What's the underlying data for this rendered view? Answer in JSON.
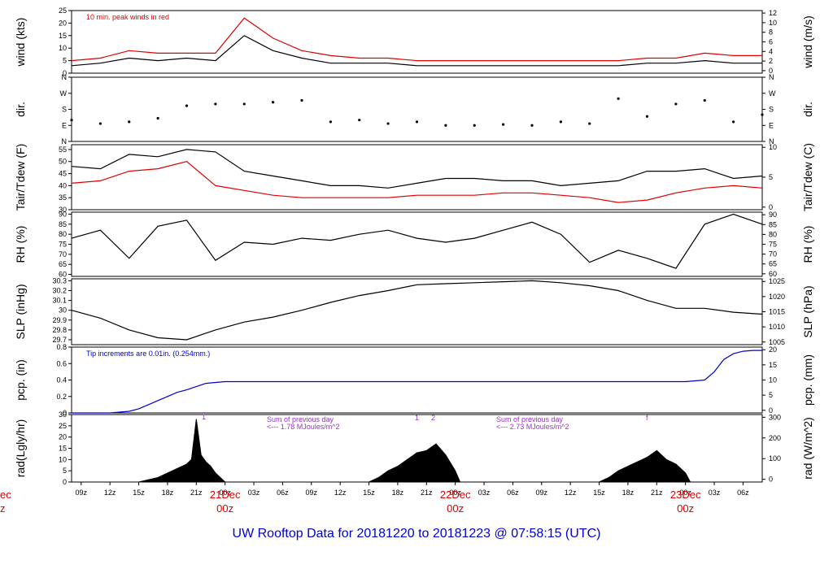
{
  "footer_title": "UW Rooftop Data for 20181220  to  20181223 @ 07:58:15  (UTC)",
  "x_axis": {
    "hours_ticks": [
      "09z",
      "12z",
      "15z",
      "18z",
      "21z",
      "00z",
      "03z",
      "06z",
      "09z",
      "12z",
      "15z",
      "18z",
      "21z",
      "00z",
      "03z",
      "06z",
      "09z",
      "12z",
      "15z",
      "18z",
      "21z",
      "00z",
      "03z",
      "06z"
    ],
    "day_labels": [
      {
        "date": "21Dec",
        "time": "00z"
      },
      {
        "date": "22Dec",
        "time": "00z"
      },
      {
        "date": "23Dec",
        "time": "00z"
      }
    ],
    "left_cut_day": {
      "date": "ec",
      "time": "z"
    }
  },
  "chart_data": [
    {
      "type": "line",
      "id": "wind",
      "ylabel": "wind (kts)",
      "ylabel_right": "wind (m/s)",
      "ylim": [
        0,
        25
      ],
      "yticks": [
        0,
        5,
        10,
        15,
        20,
        25
      ],
      "yticks_right": [
        0,
        2,
        4,
        6,
        8,
        10,
        12
      ],
      "annotation": "10 min. peak winds in red",
      "series": [
        {
          "name": "wind",
          "color": "#000000",
          "x": [
            0,
            3,
            6,
            9,
            12,
            15,
            18,
            21,
            24,
            27,
            30,
            33,
            36,
            39,
            42,
            45,
            48,
            51,
            54,
            57,
            60,
            63,
            66,
            69,
            72
          ],
          "values": [
            3,
            4,
            6,
            5,
            6,
            5,
            15,
            9,
            6,
            4,
            4,
            4,
            3,
            3,
            3,
            3,
            3,
            3,
            3,
            3,
            4,
            4,
            5,
            4,
            4
          ]
        },
        {
          "name": "10 min. peak winds",
          "color": "#dd0000",
          "x": [
            0,
            3,
            6,
            9,
            12,
            15,
            18,
            21,
            24,
            27,
            30,
            33,
            36,
            39,
            42,
            45,
            48,
            51,
            54,
            57,
            60,
            63,
            66,
            69,
            72
          ],
          "values": [
            5,
            6,
            9,
            8,
            8,
            8,
            22,
            14,
            9,
            7,
            6,
            6,
            5,
            5,
            5,
            5,
            5,
            5,
            5,
            5,
            6,
            6,
            8,
            7,
            7
          ]
        }
      ]
    },
    {
      "type": "scatter",
      "id": "dir",
      "ylabel": "dir.",
      "ylabel_right": "dir.",
      "yticks": [
        "N",
        "E",
        "S",
        "W",
        "N"
      ],
      "yticks_right": [
        "N",
        "E",
        "S",
        "W",
        "N"
      ],
      "ylim": [
        0,
        360
      ],
      "series": [
        {
          "name": "dir",
          "color": "#000000",
          "x": [
            0,
            3,
            6,
            9,
            12,
            15,
            18,
            21,
            24,
            27,
            30,
            33,
            36,
            39,
            42,
            45,
            48,
            51,
            54,
            57,
            60,
            63,
            66,
            69,
            72
          ],
          "values": [
            120,
            100,
            110,
            130,
            200,
            210,
            210,
            220,
            230,
            110,
            120,
            100,
            110,
            90,
            90,
            95,
            90,
            110,
            100,
            240,
            140,
            210,
            230,
            110,
            150
          ]
        }
      ]
    },
    {
      "type": "line",
      "id": "temp",
      "ylabel": "Tair/Tdew (F)",
      "ylabel_right": "Tair/Tdew (C)",
      "ylim": [
        30,
        57
      ],
      "yticks": [
        30,
        35,
        40,
        45,
        50,
        55
      ],
      "yticks_right": [
        0,
        5,
        10
      ],
      "series": [
        {
          "name": "Tair",
          "color": "#000000",
          "x": [
            0,
            3,
            6,
            9,
            12,
            15,
            18,
            21,
            24,
            27,
            30,
            33,
            36,
            39,
            42,
            45,
            48,
            51,
            54,
            57,
            60,
            63,
            66,
            69,
            72
          ],
          "values": [
            48,
            47,
            53,
            52,
            55,
            54,
            46,
            44,
            42,
            40,
            40,
            39,
            41,
            43,
            43,
            42,
            42,
            40,
            41,
            42,
            46,
            46,
            47,
            43,
            44
          ]
        },
        {
          "name": "Tdew",
          "color": "#dd0000",
          "x": [
            0,
            3,
            6,
            9,
            12,
            15,
            18,
            21,
            24,
            27,
            30,
            33,
            36,
            39,
            42,
            45,
            48,
            51,
            54,
            57,
            60,
            63,
            66,
            69,
            72
          ],
          "values": [
            41,
            42,
            46,
            47,
            50,
            40,
            38,
            36,
            35,
            35,
            35,
            35,
            36,
            36,
            36,
            37,
            37,
            36,
            35,
            33,
            34,
            37,
            39,
            40,
            39
          ]
        }
      ]
    },
    {
      "type": "line",
      "id": "rh",
      "ylabel": "RH (%)",
      "ylabel_right": "RH (%)",
      "ylim": [
        59,
        91
      ],
      "yticks": [
        60,
        65,
        70,
        75,
        80,
        85,
        90
      ],
      "yticks_right": [
        60,
        65,
        70,
        75,
        80,
        85,
        90
      ],
      "series": [
        {
          "name": "RH",
          "color": "#000000",
          "x": [
            0,
            3,
            6,
            9,
            12,
            15,
            18,
            21,
            24,
            27,
            30,
            33,
            36,
            39,
            42,
            45,
            48,
            51,
            54,
            57,
            60,
            63,
            66,
            69,
            72
          ],
          "values": [
            78,
            82,
            68,
            84,
            87,
            67,
            76,
            75,
            78,
            77,
            80,
            82,
            78,
            76,
            78,
            82,
            86,
            80,
            66,
            72,
            68,
            63,
            85,
            90,
            85
          ]
        }
      ]
    },
    {
      "type": "line",
      "id": "slp",
      "ylabel": "SLP (inHg)",
      "ylabel_right": "SLP (hPa)",
      "ylim": [
        29.65,
        30.32
      ],
      "yticks": [
        29.7,
        29.8,
        29.9,
        30.0,
        30.1,
        30.2,
        30.3
      ],
      "yticks_right": [
        1005,
        1010,
        1015,
        1020,
        1025
      ],
      "series": [
        {
          "name": "SLP",
          "color": "#000000",
          "x": [
            0,
            3,
            6,
            9,
            12,
            15,
            18,
            21,
            24,
            27,
            30,
            33,
            36,
            39,
            42,
            45,
            48,
            51,
            54,
            57,
            60,
            63,
            66,
            69,
            72
          ],
          "values": [
            30.0,
            29.92,
            29.8,
            29.72,
            29.7,
            29.8,
            29.88,
            29.93,
            30.0,
            30.08,
            30.15,
            30.2,
            30.26,
            30.27,
            30.28,
            30.29,
            30.3,
            30.28,
            30.25,
            30.2,
            30.1,
            30.02,
            30.02,
            29.98,
            29.96
          ]
        }
      ]
    },
    {
      "type": "line",
      "id": "pcp",
      "ylabel": "pcp. (in)",
      "ylabel_right": "pcp. (mm)",
      "ylim": [
        0,
        0.8
      ],
      "yticks": [
        0.0,
        0.2,
        0.4,
        0.6,
        0.8
      ],
      "yticks_right": [
        0,
        5,
        10,
        15,
        20
      ],
      "annotation": "Tip increments are 0.01in. (0.254mm.)",
      "series": [
        {
          "name": "pcp",
          "color": "#0000cc",
          "x": [
            0,
            2,
            4,
            6,
            7,
            8,
            9,
            10,
            11,
            12,
            13,
            14,
            16,
            20,
            30,
            40,
            50,
            60,
            64,
            66,
            67,
            68,
            69,
            70,
            71,
            72
          ],
          "values": [
            0,
            0,
            0,
            0.02,
            0.05,
            0.1,
            0.15,
            0.2,
            0.25,
            0.28,
            0.32,
            0.36,
            0.38,
            0.38,
            0.38,
            0.38,
            0.38,
            0.38,
            0.38,
            0.4,
            0.5,
            0.65,
            0.72,
            0.75,
            0.76,
            0.76
          ]
        }
      ]
    },
    {
      "type": "area",
      "id": "rad",
      "ylabel": "rad(Lgly/hr)",
      "ylabel_right": "rad (W/m^2)",
      "ylim": [
        0,
        30
      ],
      "yticks": [
        0,
        5,
        10,
        15,
        20,
        25,
        30
      ],
      "yticks_right": [
        0,
        100,
        200,
        300
      ],
      "annotations": [
        {
          "text": "Sum of previous day",
          "color": "#9933cc"
        },
        {
          "text": "<--- 1.78 MJoules/m^2",
          "color": "#9933cc"
        },
        {
          "text": "Sum of previous day",
          "color": "#9933cc"
        },
        {
          "text": "<--- 2.73 MJoules/m^2",
          "color": "#9933cc"
        },
        {
          "text": "1",
          "color": "#9933cc"
        },
        {
          "text": "1",
          "color": "#9933cc"
        },
        {
          "text": "2",
          "color": "#9933cc"
        },
        {
          "text": "f",
          "color": "#9933cc"
        }
      ],
      "series": [
        {
          "name": "rad",
          "color": "#000000",
          "x": [
            7,
            8,
            9,
            10,
            11,
            12,
            12.5,
            13,
            13.5,
            14,
            14.5,
            15,
            16,
            31,
            32,
            33,
            34,
            35,
            36,
            37,
            38,
            39,
            40,
            40.5,
            55,
            56,
            57,
            58,
            59,
            60,
            61,
            62,
            63,
            64,
            64.5
          ],
          "values": [
            0,
            1,
            2,
            4,
            6,
            8,
            10,
            28,
            12,
            9,
            7,
            4,
            0,
            0,
            2,
            5,
            7,
            10,
            13,
            14,
            17,
            12,
            5,
            0,
            0,
            2,
            5,
            7,
            9,
            11,
            14,
            10,
            8,
            4,
            0
          ]
        }
      ]
    }
  ]
}
